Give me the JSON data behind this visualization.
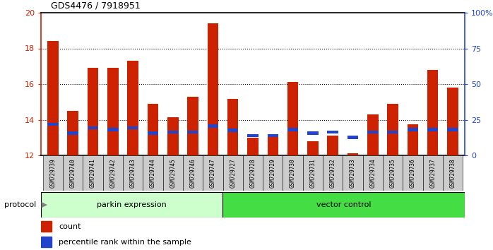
{
  "title": "GDS4476 / 7918951",
  "samples": [
    "GSM729739",
    "GSM729740",
    "GSM729741",
    "GSM729742",
    "GSM729743",
    "GSM729744",
    "GSM729745",
    "GSM729746",
    "GSM729747",
    "GSM729727",
    "GSM729728",
    "GSM729729",
    "GSM729730",
    "GSM729731",
    "GSM729732",
    "GSM729733",
    "GSM729734",
    "GSM729735",
    "GSM729736",
    "GSM729737",
    "GSM729738"
  ],
  "red_values": [
    18.4,
    14.5,
    16.9,
    16.9,
    17.3,
    14.9,
    14.15,
    15.3,
    19.4,
    15.15,
    13.0,
    13.1,
    16.1,
    12.8,
    13.1,
    12.1,
    14.3,
    14.9,
    13.75,
    16.8,
    15.8
  ],
  "blue_values": [
    13.75,
    13.25,
    13.55,
    13.45,
    13.55,
    13.25,
    13.3,
    13.3,
    13.65,
    13.4,
    13.1,
    13.1,
    13.45,
    13.25,
    13.3,
    13.0,
    13.3,
    13.3,
    13.45,
    13.45,
    13.45
  ],
  "parkin_count": 9,
  "vector_count": 12,
  "parkin_label": "parkin expression",
  "vector_label": "vector control",
  "protocol_label": "protocol",
  "ylim_left": [
    12,
    20
  ],
  "ylim_right": [
    0,
    100
  ],
  "yticks_left": [
    12,
    14,
    16,
    18,
    20
  ],
  "yticks_right": [
    0,
    25,
    50,
    75,
    100
  ],
  "red_color": "#cc2200",
  "blue_color": "#2244cc",
  "parkin_bg": "#ccffcc",
  "vector_bg": "#44dd44",
  "sample_bg": "#cccccc",
  "bar_width": 0.55,
  "legend_count": "count",
  "legend_pct": "percentile rank within the sample",
  "grid_lines": [
    14,
    16,
    18
  ],
  "blue_bar_height": 0.18
}
